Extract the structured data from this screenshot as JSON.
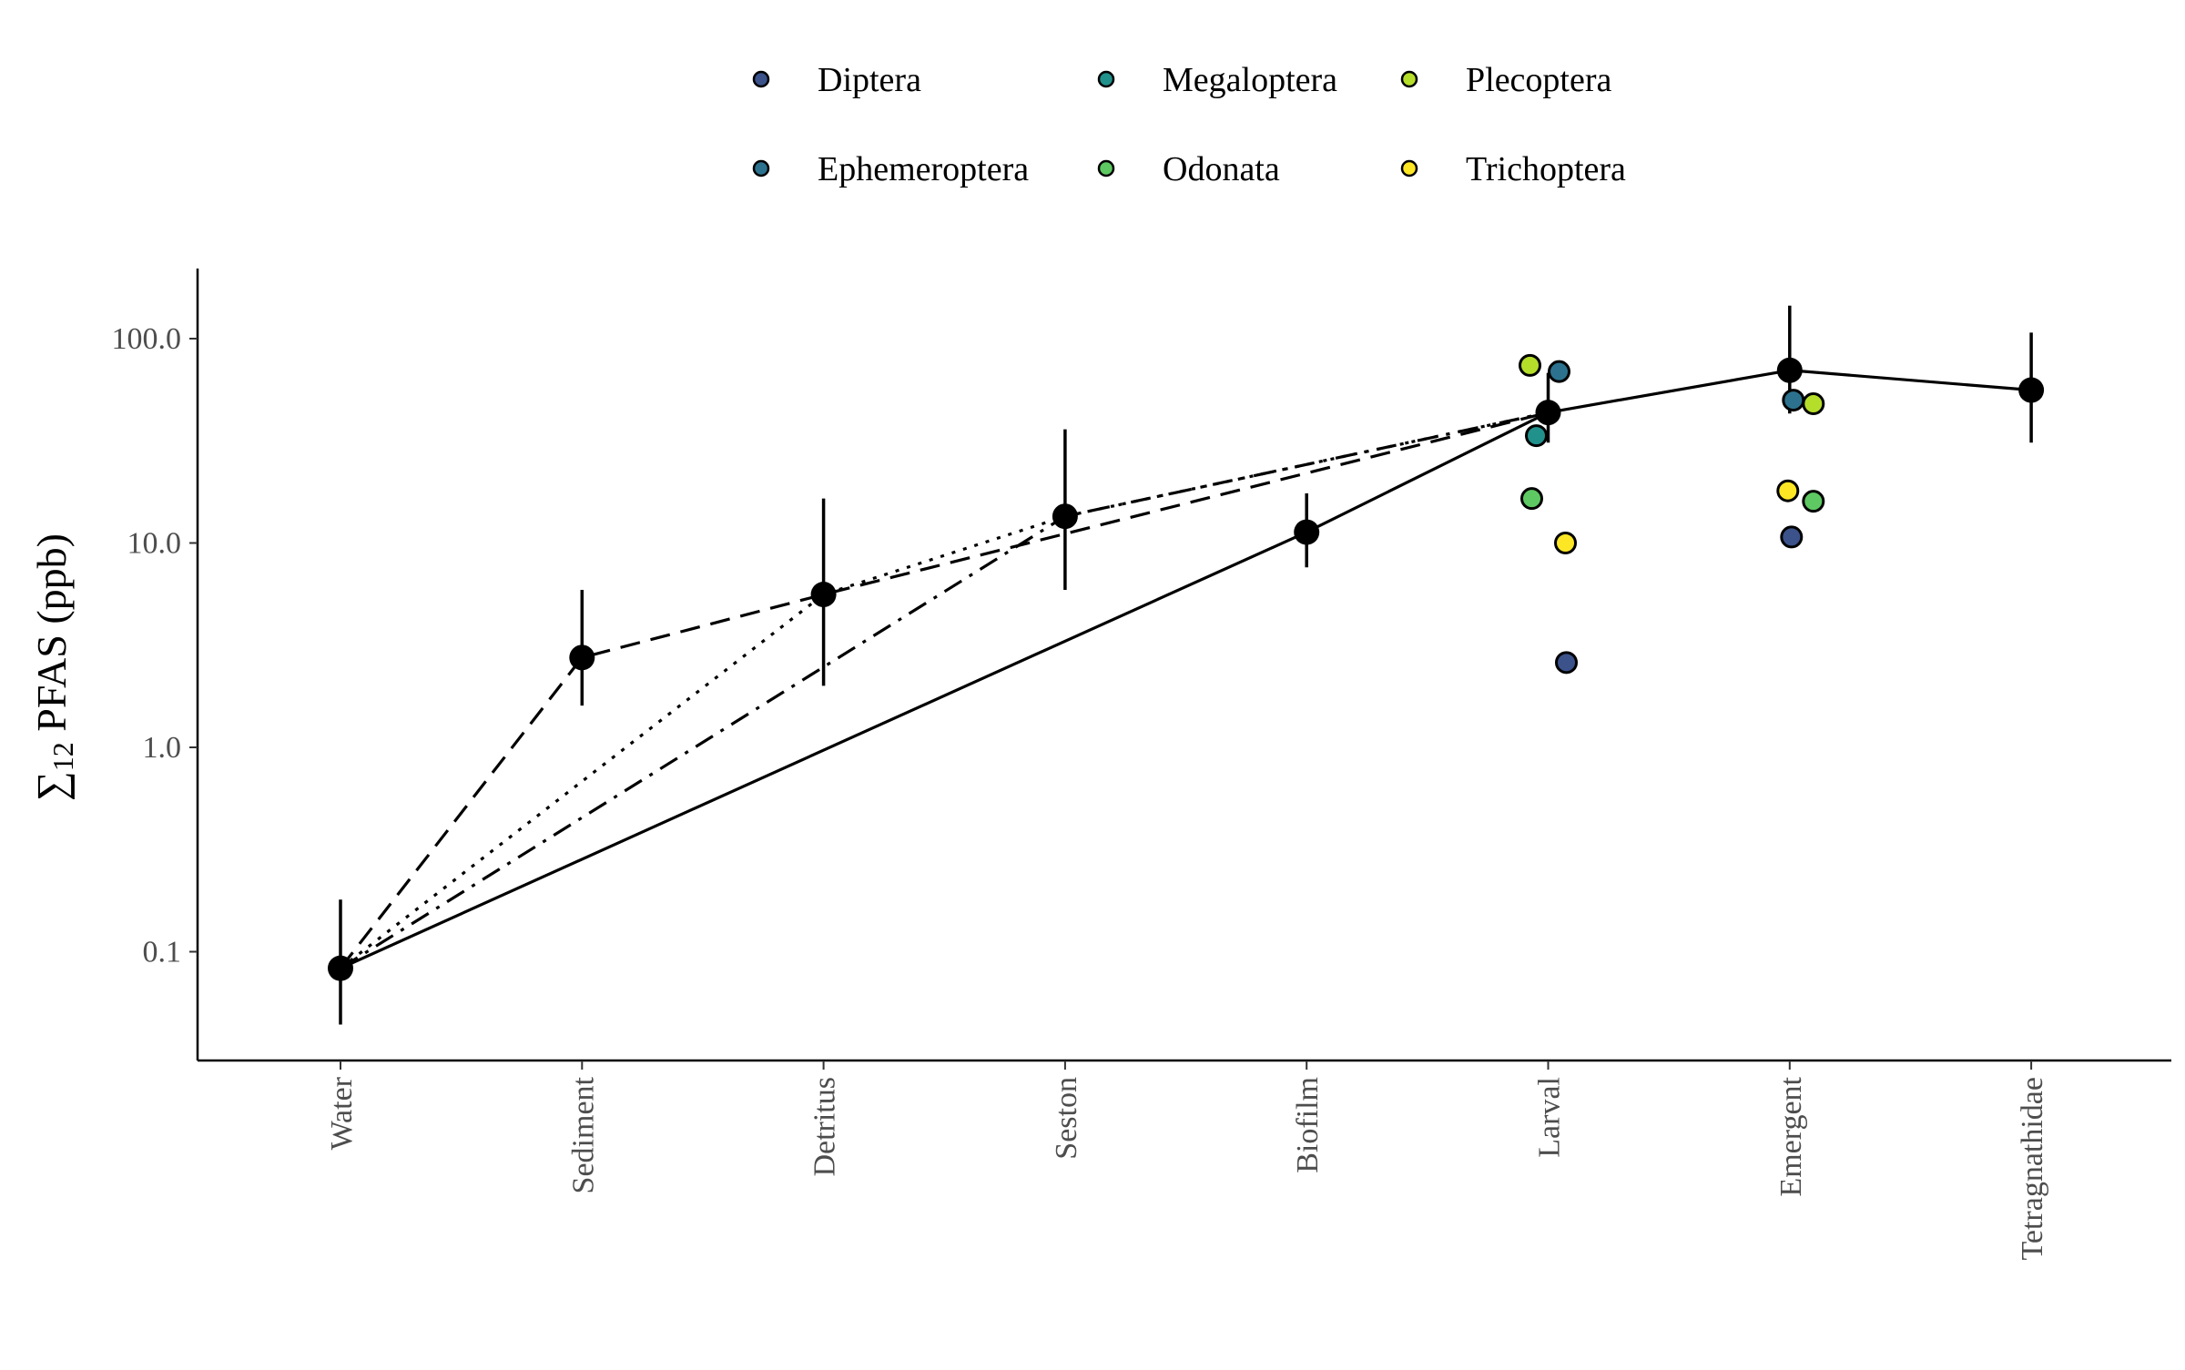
{
  "chart_data": {
    "type": "line",
    "ylabel": "∑12 PFAS (ppb)",
    "ylabel_parts": {
      "symbol": "∑",
      "subscript": "12",
      "text": " PFAS (ppb)"
    },
    "xlabel": "",
    "y_scale": "log",
    "ylim": [
      0.03,
      220
    ],
    "y_ticks": [
      0.1,
      1.0,
      10.0,
      100.0
    ],
    "y_tick_labels": [
      "0.1",
      "1.0",
      "10.0",
      "100.0"
    ],
    "categories": [
      "Water",
      "Sediment",
      "Detritus",
      "Seston",
      "Biofilm",
      "Larval",
      "Emergent",
      "Tetragnathidae"
    ],
    "grid": false,
    "legend_position": "top",
    "means": [
      {
        "category": "Water",
        "value": 0.083,
        "low": 0.044,
        "high": 0.18
      },
      {
        "category": "Sediment",
        "value": 2.75,
        "low": 1.6,
        "high": 5.9
      },
      {
        "category": "Detritus",
        "value": 5.6,
        "low": 2.0,
        "high": 16.5
      },
      {
        "category": "Seston",
        "value": 13.5,
        "low": 5.9,
        "high": 36.0
      },
      {
        "category": "Biofilm",
        "value": 11.3,
        "low": 7.6,
        "high": 17.5
      },
      {
        "category": "Larval",
        "value": 43.5,
        "low": 31.0,
        "high": 68.0
      },
      {
        "category": "Emergent",
        "value": 70.0,
        "low": 43.0,
        "high": 145.0
      },
      {
        "category": "Tetragnathidae",
        "value": 56.0,
        "low": 31.0,
        "high": 107.0
      }
    ],
    "pathways": [
      {
        "style": "solid",
        "categories": [
          "Water",
          "Biofilm",
          "Larval",
          "Emergent",
          "Tetragnathidae"
        ]
      },
      {
        "style": "dashed",
        "categories": [
          "Water",
          "Sediment",
          "Detritus",
          "Larval"
        ]
      },
      {
        "style": "dotted",
        "categories": [
          "Water",
          "Detritus",
          "Seston",
          "Larval"
        ]
      },
      {
        "style": "dashdot",
        "categories": [
          "Water",
          "Seston",
          "Larval"
        ]
      }
    ],
    "series": [
      {
        "name": "Diptera",
        "color": "#3b528b",
        "points": [
          {
            "category": "Larval",
            "y": 2.6
          },
          {
            "category": "Emergent",
            "y": 10.7
          }
        ]
      },
      {
        "name": "Ephemeroptera",
        "color": "#2c728e",
        "points": [
          {
            "category": "Larval",
            "y": 69.0
          },
          {
            "category": "Emergent",
            "y": 50.0
          }
        ]
      },
      {
        "name": "Megaloptera",
        "color": "#21918c",
        "points": [
          {
            "category": "Larval",
            "y": 33.5
          }
        ]
      },
      {
        "name": "Odonata",
        "color": "#5ec962",
        "points": [
          {
            "category": "Larval",
            "y": 16.5
          },
          {
            "category": "Emergent",
            "y": 16.0
          }
        ]
      },
      {
        "name": "Plecoptera",
        "color": "#b5de2b",
        "points": [
          {
            "category": "Larval",
            "y": 74.0
          },
          {
            "category": "Emergent",
            "y": 48.0
          }
        ]
      },
      {
        "name": "Trichoptera",
        "color": "#fde725",
        "points": [
          {
            "category": "Larval",
            "y": 10.0
          },
          {
            "category": "Emergent",
            "y": 18.0
          }
        ]
      }
    ],
    "legend": {
      "columns": [
        [
          "Diptera",
          "Ephemeroptera"
        ],
        [
          "Megaloptera",
          "Odonata"
        ],
        [
          "Plecoptera",
          "Trichoptera"
        ]
      ]
    }
  }
}
